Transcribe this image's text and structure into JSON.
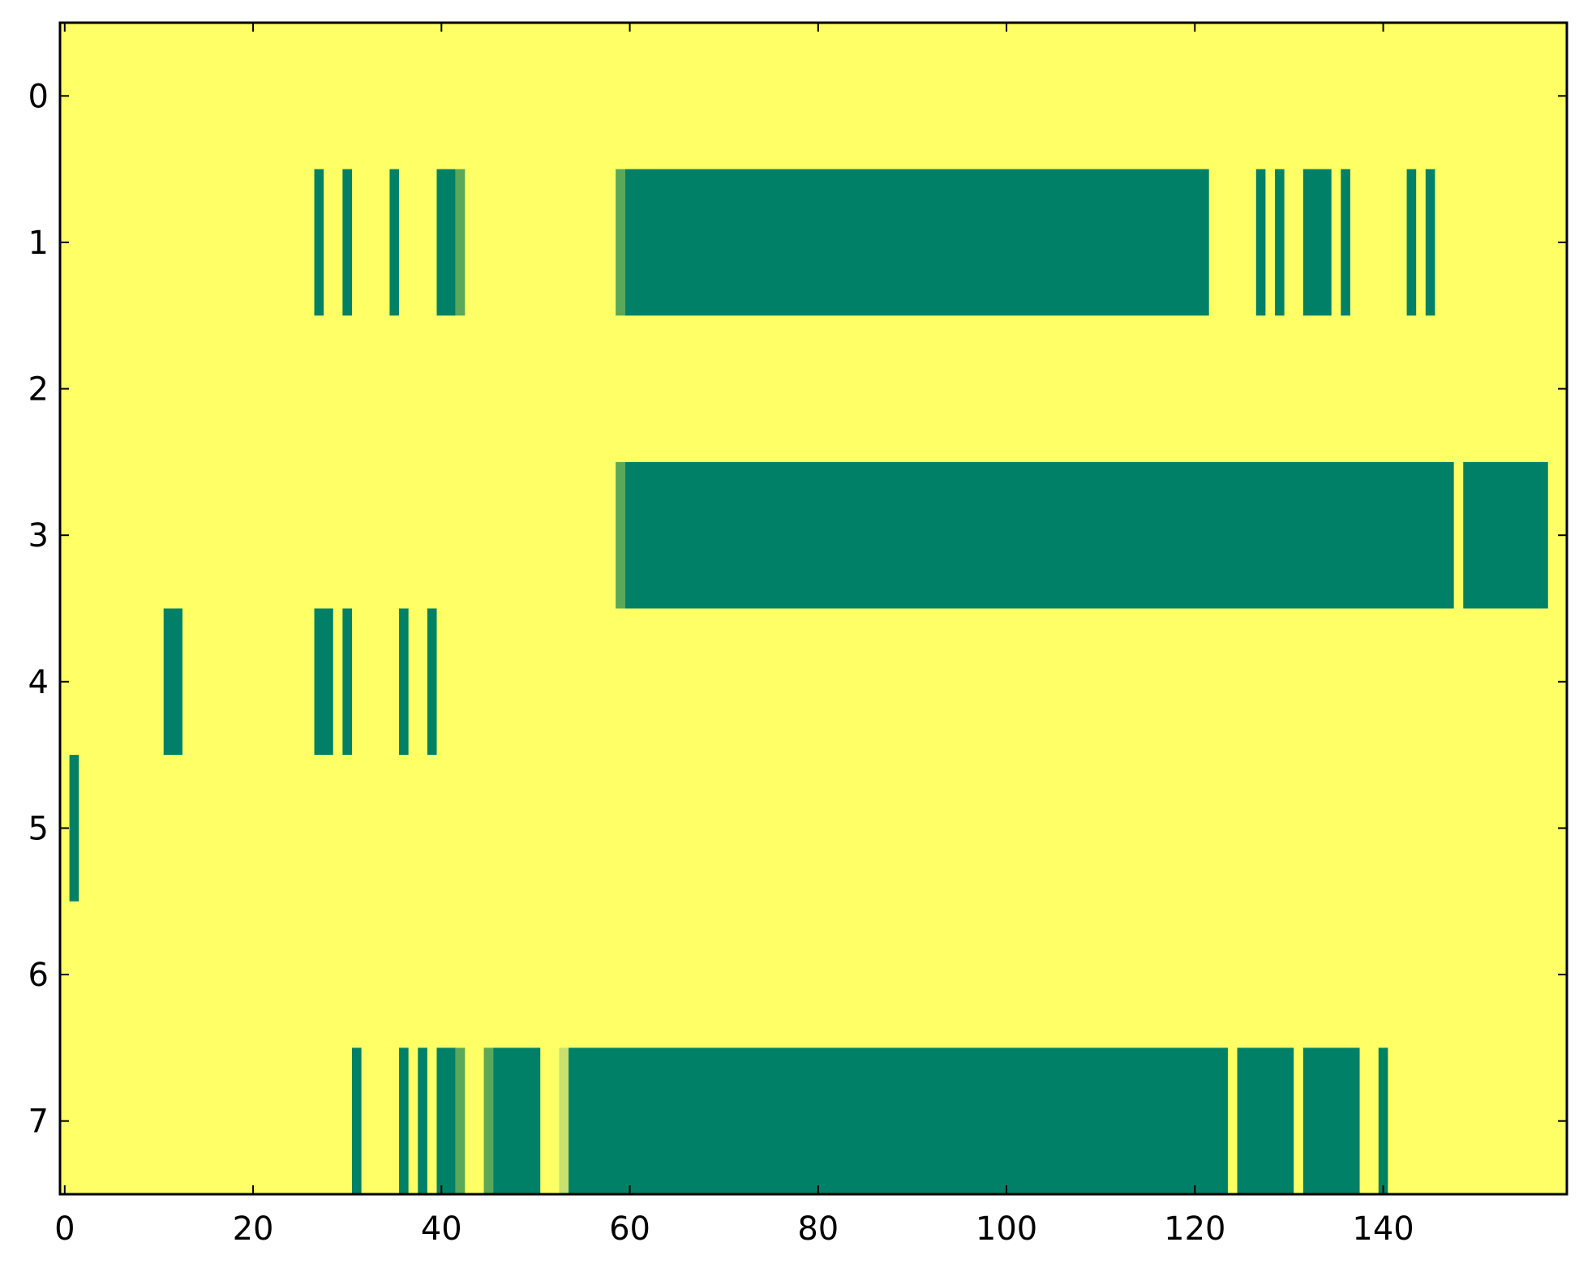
{
  "chart_data": {
    "type": "heatmap",
    "title": "",
    "xlabel": "",
    "ylabel": "",
    "xlim": [
      -0.5,
      159.5
    ],
    "ylim": [
      7.5,
      -0.5
    ],
    "x_ticks": [
      0,
      20,
      40,
      60,
      80,
      100,
      120,
      140
    ],
    "x_tick_labels": [
      "0",
      "20",
      "40",
      "60",
      "80",
      "100",
      "120",
      "140"
    ],
    "y_ticks": [
      0,
      1,
      2,
      3,
      4,
      5,
      6,
      7
    ],
    "y_tick_labels": [
      "0",
      "1",
      "2",
      "3",
      "4",
      "5",
      "6",
      "7"
    ],
    "grid": false,
    "colors": {
      "background": "#ffff66",
      "high": "#008066",
      "mid": "#5aa85a",
      "low": "#c8e06e",
      "axis": "#000000"
    },
    "rows": [
      {
        "row": 0,
        "segments": []
      },
      {
        "row": 1,
        "segments": [
          {
            "x_start": 27,
            "x_end": 27,
            "level": "high"
          },
          {
            "x_start": 30,
            "x_end": 30,
            "level": "high"
          },
          {
            "x_start": 35,
            "x_end": 35,
            "level": "high"
          },
          {
            "x_start": 40,
            "x_end": 41,
            "level": "high"
          },
          {
            "x_start": 42,
            "x_end": 42,
            "level": "mid"
          },
          {
            "x_start": 59,
            "x_end": 59,
            "level": "mid"
          },
          {
            "x_start": 60,
            "x_end": 121,
            "level": "high"
          },
          {
            "x_start": 127,
            "x_end": 127,
            "level": "high"
          },
          {
            "x_start": 129,
            "x_end": 129,
            "level": "high"
          },
          {
            "x_start": 132,
            "x_end": 134,
            "level": "high"
          },
          {
            "x_start": 136,
            "x_end": 136,
            "level": "high"
          },
          {
            "x_start": 143,
            "x_end": 143,
            "level": "high"
          },
          {
            "x_start": 145,
            "x_end": 145,
            "level": "high"
          }
        ]
      },
      {
        "row": 2,
        "segments": []
      },
      {
        "row": 3,
        "segments": [
          {
            "x_start": 59,
            "x_end": 59,
            "level": "mid"
          },
          {
            "x_start": 60,
            "x_end": 147,
            "level": "high"
          },
          {
            "x_start": 149,
            "x_end": 157,
            "level": "high"
          }
        ]
      },
      {
        "row": 4,
        "segments": [
          {
            "x_start": 11,
            "x_end": 12,
            "level": "high"
          },
          {
            "x_start": 27,
            "x_end": 28,
            "level": "high"
          },
          {
            "x_start": 30,
            "x_end": 30,
            "level": "high"
          },
          {
            "x_start": 36,
            "x_end": 36,
            "level": "high"
          },
          {
            "x_start": 39,
            "x_end": 39,
            "level": "high"
          }
        ]
      },
      {
        "row": 5,
        "segments": [
          {
            "x_start": 1,
            "x_end": 1,
            "level": "high"
          }
        ]
      },
      {
        "row": 6,
        "segments": []
      },
      {
        "row": 7,
        "segments": [
          {
            "x_start": 31,
            "x_end": 31,
            "level": "high"
          },
          {
            "x_start": 36,
            "x_end": 36,
            "level": "high"
          },
          {
            "x_start": 38,
            "x_end": 38,
            "level": "high"
          },
          {
            "x_start": 40,
            "x_end": 41,
            "level": "high"
          },
          {
            "x_start": 42,
            "x_end": 42,
            "level": "mid"
          },
          {
            "x_start": 45,
            "x_end": 45,
            "level": "mid"
          },
          {
            "x_start": 46,
            "x_end": 50,
            "level": "high"
          },
          {
            "x_start": 53,
            "x_end": 53,
            "level": "low"
          },
          {
            "x_start": 54,
            "x_end": 123,
            "level": "high"
          },
          {
            "x_start": 125,
            "x_end": 130,
            "level": "high"
          },
          {
            "x_start": 132,
            "x_end": 137,
            "level": "high"
          },
          {
            "x_start": 140,
            "x_end": 140,
            "level": "high"
          }
        ]
      }
    ]
  }
}
